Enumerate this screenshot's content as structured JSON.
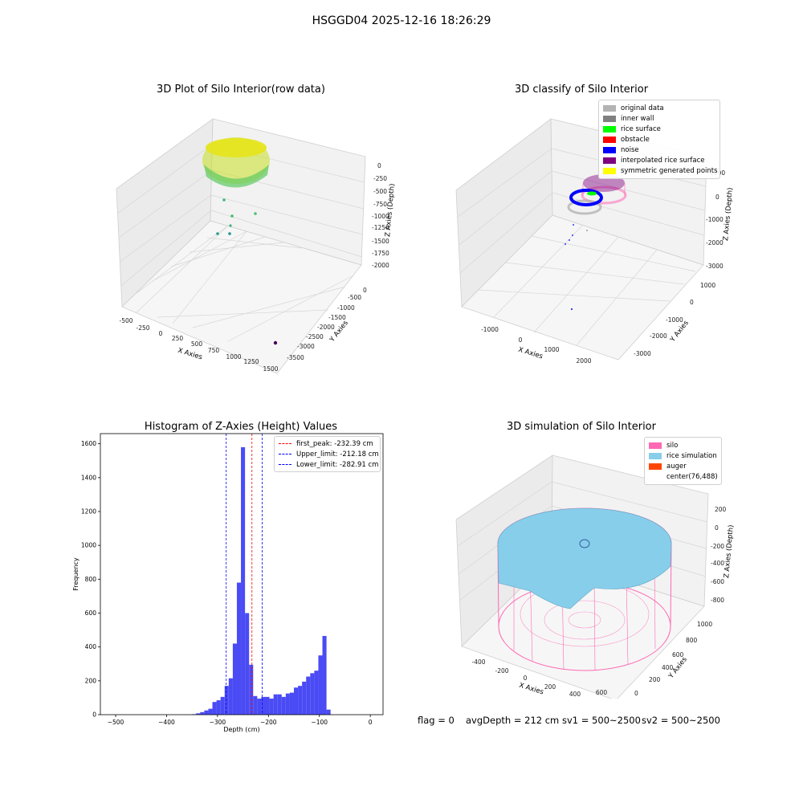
{
  "suptitle": "HSGGD04 2025-12-16 18:26:29",
  "panel1": {
    "title": "3D Plot of Silo Interior(row data)",
    "xlabel": "X Axies",
    "ylabel": "Y Axies",
    "zlabel": "Z Axies (Depth)",
    "xticks": [
      "-500",
      "-250",
      "0",
      "250",
      "500",
      "750",
      "1000",
      "1250",
      "1500"
    ],
    "yticks": [
      "0",
      "-500",
      "-1000",
      "-1500",
      "-2000",
      "-2500",
      "-3000",
      "-3500"
    ],
    "zticks": [
      "0",
      "-250",
      "-500",
      "-750",
      "-1000",
      "-1250",
      "-1500",
      "-1750",
      "-2000"
    ]
  },
  "panel2": {
    "title": "3D classify of Silo Interior",
    "xlabel": "X Axies",
    "ylabel": "Y Axies",
    "zlabel": "Z Axies (Depth)",
    "xticks": [
      "-1000",
      "0",
      "1000",
      "2000"
    ],
    "yticks": [
      "1000",
      "0",
      "-1000",
      "-2000",
      "-3000"
    ],
    "zticks": [
      "1000",
      "0",
      "-1000",
      "-2000",
      "-3000"
    ],
    "legend": [
      {
        "label": "original data",
        "color": "#b3b3b3"
      },
      {
        "label": "inner wall",
        "color": "#808080"
      },
      {
        "label": "rice surface",
        "color": "#00ff00"
      },
      {
        "label": "obstacle",
        "color": "#ff0000"
      },
      {
        "label": "noise",
        "color": "#0000ff"
      },
      {
        "label": "interpolated rice surface",
        "color": "#800080"
      },
      {
        "label": "symmetric generated points",
        "color": "#ffff00"
      }
    ]
  },
  "panel3": {
    "title": "Histogram of Z-Axies (Height) Values",
    "xlabel": "Depth (cm)",
    "ylabel": "Frequency",
    "legend": [
      {
        "label": "first_peak: -232.39 cm",
        "color": "#ff0000"
      },
      {
        "label": "Upper_limit: -212.18 cm",
        "color": "#0000ff"
      },
      {
        "label": "Lower_limit: -282.91 cm",
        "color": "#0000ff"
      }
    ]
  },
  "panel4": {
    "title": "3D simulation of Silo Interior",
    "xlabel": "X Axies",
    "ylabel": "Y Axies",
    "zlabel": "Z Axies (Depth)",
    "xticks": [
      "-400",
      "-200",
      "0",
      "200",
      "400",
      "600"
    ],
    "yticks": [
      "1000",
      "800",
      "600",
      "400",
      "200",
      "0"
    ],
    "zticks": [
      "200",
      "0",
      "-200",
      "-400",
      "-600",
      "-800"
    ],
    "legend": [
      {
        "label": "silo",
        "color": "#ff69b4"
      },
      {
        "label": "rice simulation",
        "color": "#87ceeb"
      },
      {
        "label": "auger",
        "color": "#ff4500"
      },
      {
        "label": "center(76,488)",
        "color": ""
      }
    ]
  },
  "footer": {
    "flag": "flag = 0",
    "avg": "avgDepth = 212 cm",
    "sv1": "sv1 = 500~2500",
    "sv2": "sv2 = 500~2500"
  },
  "chart_data": [
    {
      "type": "scatter",
      "title": "3D Plot of Silo Interior(row data)",
      "xlabel": "X Axies",
      "ylabel": "Y Axies",
      "zlabel": "Z Axies (Depth)",
      "xlim": [
        -500,
        1500
      ],
      "ylim": [
        -3500,
        0
      ],
      "zlim": [
        -2000,
        0
      ]
    },
    {
      "type": "scatter",
      "title": "3D classify of Silo Interior",
      "series": [
        {
          "name": "original data"
        },
        {
          "name": "inner wall"
        },
        {
          "name": "rice surface"
        },
        {
          "name": "obstacle"
        },
        {
          "name": "noise"
        },
        {
          "name": "interpolated rice surface"
        },
        {
          "name": "symmetric generated points"
        }
      ]
    },
    {
      "type": "bar",
      "title": "Histogram of Z-Axies (Height) Values",
      "xlabel": "Depth (cm)",
      "ylabel": "Frequency",
      "xlim": [
        -530,
        25
      ],
      "ylim": [
        0,
        1660
      ],
      "xticks": [
        -500,
        -400,
        -300,
        -200,
        -100,
        0
      ],
      "yticks": [
        0,
        200,
        400,
        600,
        800,
        1000,
        1200,
        1400,
        1600
      ],
      "bin_left": -350,
      "bin_width": 8,
      "values": [
        3,
        8,
        15,
        25,
        35,
        75,
        85,
        105,
        170,
        215,
        420,
        780,
        1580,
        600,
        295,
        110,
        95,
        105,
        105,
        95,
        120,
        120,
        105,
        125,
        130,
        160,
        170,
        195,
        225,
        245,
        260,
        350,
        465,
        30
      ],
      "lines": [
        {
          "name": "first_peak: -232.39 cm",
          "x": -232.39,
          "color": "#ff0000"
        },
        {
          "name": "Upper_limit: -212.18 cm",
          "x": -212.18,
          "color": "#0000ff"
        },
        {
          "name": "Lower_limit: -282.91 cm",
          "x": -282.91,
          "color": "#0000ff"
        }
      ]
    },
    {
      "type": "area",
      "title": "3D simulation of Silo Interior",
      "series": [
        {
          "name": "silo"
        },
        {
          "name": "rice simulation"
        },
        {
          "name": "auger"
        },
        {
          "name": "center(76,488)"
        }
      ]
    }
  ]
}
